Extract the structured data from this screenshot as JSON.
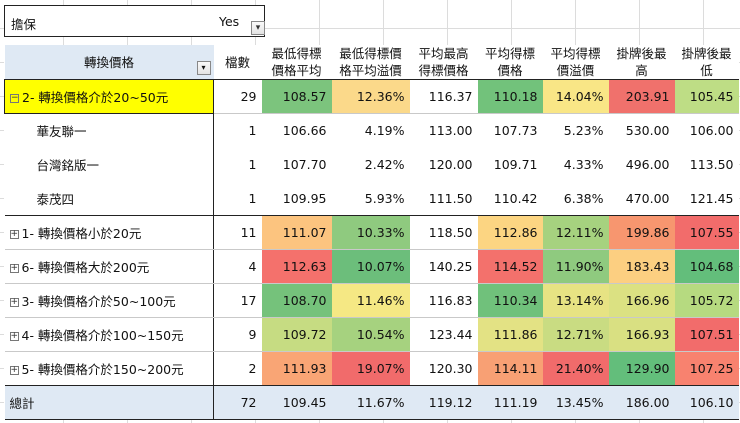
{
  "filter": {
    "label": "擔保",
    "value": "Yes",
    "button_glyph": "▾"
  },
  "table": {
    "row_header": "轉換價格",
    "sort_glyph": "▾",
    "headers": [
      "檔數",
      "最低得標\n價格平均",
      "最低得標價\n格平均溢價",
      "平均最高\n得標價格",
      "平均得標\n價格",
      "平均得標\n價溢價",
      "掛牌後最\n高",
      "掛牌後最\n低"
    ],
    "rows": [
      {
        "label": "2- 轉換價格介於20~50元",
        "expander": "−",
        "kind": "group-first",
        "values": [
          "29",
          "108.57",
          "12.36%",
          "116.37",
          "110.18",
          "14.04%",
          "203.91",
          "105.45"
        ],
        "colors": [
          "",
          "#7cc47d",
          "#fbd98a",
          "",
          "#72c27b",
          "#f9e686",
          "#f0716c",
          "#bedd85"
        ]
      },
      {
        "label": "華友聯一",
        "kind": "child",
        "values": [
          "1",
          "106.66",
          "4.19%",
          "113.00",
          "107.73",
          "5.23%",
          "530.00",
          "106.00"
        ],
        "colors": [
          "",
          "",
          "",
          "",
          "",
          "",
          "",
          ""
        ]
      },
      {
        "label": "台灣銘版一",
        "kind": "child",
        "values": [
          "1",
          "107.70",
          "2.42%",
          "120.00",
          "109.71",
          "4.33%",
          "496.00",
          "113.50"
        ],
        "colors": [
          "",
          "",
          "",
          "",
          "",
          "",
          "",
          ""
        ]
      },
      {
        "label": "泰茂四",
        "kind": "child-last",
        "values": [
          "1",
          "109.95",
          "5.93%",
          "111.50",
          "110.42",
          "6.38%",
          "470.00",
          "121.45"
        ],
        "colors": [
          "",
          "",
          "",
          "",
          "",
          "",
          "",
          ""
        ]
      },
      {
        "label": "1- 轉換價格小於20元",
        "expander": "+",
        "kind": "group",
        "values": [
          "11",
          "111.07",
          "10.33%",
          "118.50",
          "112.86",
          "12.11%",
          "199.86",
          "107.55"
        ],
        "colors": [
          "",
          "#fcc47f",
          "#8fca7f",
          "",
          "#fcd582",
          "#a6d27f",
          "#f7966f",
          "#f26c6b"
        ]
      },
      {
        "label": "6- 轉換價格大於200元",
        "expander": "+",
        "kind": "group",
        "values": [
          "4",
          "112.63",
          "10.07%",
          "140.25",
          "114.52",
          "11.90%",
          "183.43",
          "104.68"
        ],
        "colors": [
          "",
          "#f4716c",
          "#6cbe7b",
          "",
          "#f3716c",
          "#8fca7f",
          "#fccf81",
          "#63be7b"
        ]
      },
      {
        "label": "3- 轉換價格介於50~100元",
        "expander": "+",
        "kind": "group",
        "values": [
          "17",
          "108.70",
          "11.46%",
          "116.83",
          "110.34",
          "13.14%",
          "166.96",
          "105.72"
        ],
        "colors": [
          "",
          "#75c27b",
          "#f5e884",
          "",
          "#70c17b",
          "#e7e383",
          "#dbe182",
          "#b6da80"
        ]
      },
      {
        "label": "4- 轉換價格介於100~150元",
        "expander": "+",
        "kind": "group",
        "values": [
          "9",
          "109.72",
          "10.54%",
          "123.44",
          "111.86",
          "12.71%",
          "166.93",
          "107.51"
        ],
        "colors": [
          "",
          "#c6dc82",
          "#a6d27f",
          "",
          "#e3e284",
          "#c9dc82",
          "#d9e082",
          "#f26c6b"
        ]
      },
      {
        "label": "5- 轉換價格介於150~200元",
        "expander": "+",
        "kind": "group-last",
        "values": [
          "2",
          "111.93",
          "19.07%",
          "120.30",
          "114.11",
          "21.40%",
          "129.90",
          "107.25"
        ],
        "colors": [
          "",
          "#f9a575",
          "#f16b6b",
          "",
          "#f8a074",
          "#f16b6b",
          "#63be7b",
          "#f8826f"
        ]
      }
    ],
    "total": {
      "label": "總計",
      "values": [
        "72",
        "109.45",
        "11.67%",
        "119.12",
        "111.19",
        "13.45%",
        "186.00",
        "106.10"
      ]
    }
  }
}
